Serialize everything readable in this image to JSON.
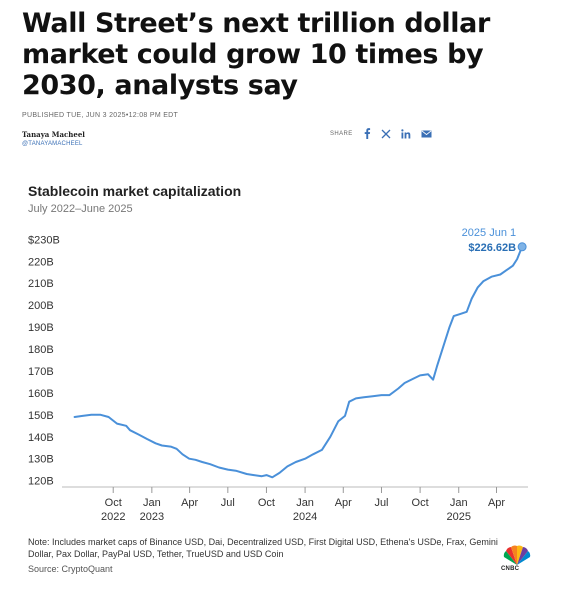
{
  "article": {
    "headline": "Wall Street’s next trillion dollar market could grow 10 times by 2030, analysts say",
    "published": "PUBLISHED TUE, JUN 3 2025•12:08 PM EDT",
    "author_name": "Tanaya Macheel",
    "author_handle": "@TANAYAMACHEEL",
    "share_label": "SHARE",
    "share_icons": [
      "facebook-icon",
      "x-icon",
      "linkedin-icon",
      "email-icon"
    ],
    "accent_color": "#3a6fb5"
  },
  "chart_data": {
    "type": "line",
    "title": "Stablecoin market capitalization",
    "subtitle": "July 2022–June 2025",
    "line_color": "#4a90d9",
    "y_range": [
      118,
      232
    ],
    "y_ticks": [
      120,
      130,
      140,
      150,
      160,
      170,
      180,
      190,
      200,
      210,
      220,
      230
    ],
    "y_tick_labels": [
      "120B",
      "130B",
      "140B",
      "150B",
      "160B",
      "170B",
      "180B",
      "190B",
      "200B",
      "210B",
      "220B",
      "$230B"
    ],
    "x_range": [
      "2022-06-01",
      "2025-06-15"
    ],
    "x_ticks": [
      {
        "date": "2022-10-01",
        "month": "Oct",
        "year": "2022"
      },
      {
        "date": "2023-01-01",
        "month": "Jan",
        "year": "2023"
      },
      {
        "date": "2023-04-01",
        "month": "Apr",
        "year": ""
      },
      {
        "date": "2023-07-01",
        "month": "Jul",
        "year": ""
      },
      {
        "date": "2023-10-01",
        "month": "Oct",
        "year": ""
      },
      {
        "date": "2024-01-01",
        "month": "Jan",
        "year": "2024"
      },
      {
        "date": "2024-04-01",
        "month": "Apr",
        "year": ""
      },
      {
        "date": "2024-07-01",
        "month": "Jul",
        "year": ""
      },
      {
        "date": "2024-10-01",
        "month": "Oct",
        "year": ""
      },
      {
        "date": "2025-01-01",
        "month": "Jan",
        "year": "2025"
      },
      {
        "date": "2025-04-01",
        "month": "Apr",
        "year": ""
      }
    ],
    "series": [
      {
        "values": [
          [
            "2022-07-01",
            149
          ],
          [
            "2022-07-20",
            149.5
          ],
          [
            "2022-08-10",
            150
          ],
          [
            "2022-09-01",
            150
          ],
          [
            "2022-09-20",
            149
          ],
          [
            "2022-10-10",
            146
          ],
          [
            "2022-11-01",
            145
          ],
          [
            "2022-11-10",
            143
          ],
          [
            "2022-12-01",
            141
          ],
          [
            "2022-12-20",
            139
          ],
          [
            "2023-01-10",
            137
          ],
          [
            "2023-01-25",
            136
          ],
          [
            "2023-02-15",
            135.5
          ],
          [
            "2023-03-01",
            134.5
          ],
          [
            "2023-03-15",
            132
          ],
          [
            "2023-03-31",
            130
          ],
          [
            "2023-04-15",
            129.5
          ],
          [
            "2023-05-01",
            128.5
          ],
          [
            "2023-05-20",
            127.5
          ],
          [
            "2023-06-10",
            126
          ],
          [
            "2023-07-01",
            125
          ],
          [
            "2023-07-20",
            124.5
          ],
          [
            "2023-08-15",
            123
          ],
          [
            "2023-09-01",
            122.5
          ],
          [
            "2023-09-20",
            122
          ],
          [
            "2023-10-01",
            122.5
          ],
          [
            "2023-10-15",
            121.5
          ],
          [
            "2023-11-01",
            123.5
          ],
          [
            "2023-11-20",
            126.5
          ],
          [
            "2023-12-10",
            128.5
          ],
          [
            "2024-01-01",
            130
          ],
          [
            "2024-01-20",
            132
          ],
          [
            "2024-02-10",
            134
          ],
          [
            "2024-03-01",
            140
          ],
          [
            "2024-03-20",
            147
          ],
          [
            "2024-04-05",
            149.5
          ],
          [
            "2024-04-15",
            156
          ],
          [
            "2024-05-01",
            157.5
          ],
          [
            "2024-05-20",
            158
          ],
          [
            "2024-06-10",
            158.5
          ],
          [
            "2024-07-01",
            159
          ],
          [
            "2024-07-20",
            159
          ],
          [
            "2024-08-10",
            162
          ],
          [
            "2024-08-25",
            164.5
          ],
          [
            "2024-09-15",
            166.5
          ],
          [
            "2024-10-01",
            168
          ],
          [
            "2024-10-20",
            168.5
          ],
          [
            "2024-11-01",
            166
          ],
          [
            "2024-11-10",
            172
          ],
          [
            "2024-11-25",
            181
          ],
          [
            "2024-12-10",
            190
          ],
          [
            "2024-12-20",
            195
          ],
          [
            "2025-01-05",
            196
          ],
          [
            "2025-01-20",
            197
          ],
          [
            "2025-02-01",
            203
          ],
          [
            "2025-02-15",
            208
          ],
          [
            "2025-03-01",
            211
          ],
          [
            "2025-03-20",
            213
          ],
          [
            "2025-04-10",
            214
          ],
          [
            "2025-04-25",
            216
          ],
          [
            "2025-05-10",
            218
          ],
          [
            "2025-05-20",
            221
          ],
          [
            "2025-06-01",
            226.62
          ]
        ]
      }
    ],
    "annotation": {
      "date": "2025-06-01",
      "value": 226.62,
      "date_label": "2025 Jun 1",
      "value_label": "$226.62B"
    },
    "grid": false,
    "legend": "none"
  },
  "footer": {
    "note": "Note: Includes market caps of Binance USD, Dai, Decentralized USD, First Digital USD, Ethena's USDe, Frax, Gemini Dollar, Pax Dollar, PayPal USD, Tether, TrueUSD and USD Coin",
    "source": "Source: CryptoQuant",
    "logo_text": "CNBC"
  }
}
